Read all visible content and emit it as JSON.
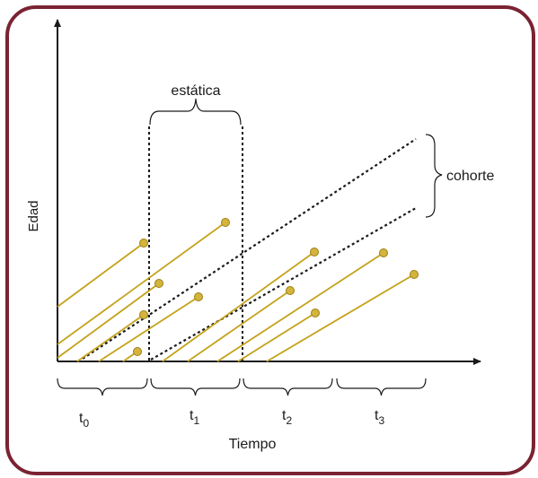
{
  "labels": {
    "y_axis": "Edad",
    "x_axis": "Tiempo",
    "static": "estática",
    "cohort": "cohorte",
    "periods": [
      {
        "base": "t",
        "sub": "0"
      },
      {
        "base": "t",
        "sub": "1"
      },
      {
        "base": "t",
        "sub": "2"
      },
      {
        "base": "t",
        "sub": "3"
      }
    ]
  },
  "colors": {
    "frame": "#7a2333",
    "axis": "#1a1a1a",
    "lifeline": "#c4a21a",
    "dot_fill": "#d4b43c",
    "dot_stroke": "#9c7f14",
    "dashed": "#1a1a1a"
  }
}
